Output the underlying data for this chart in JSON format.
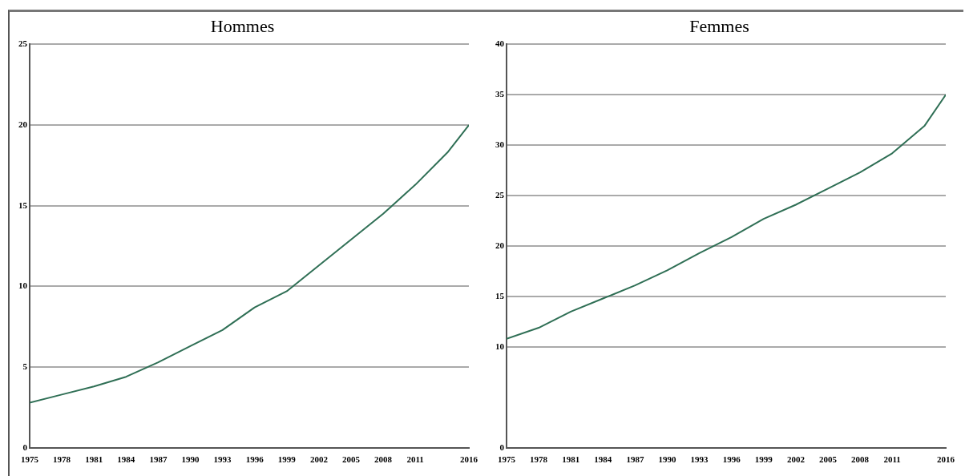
{
  "chart_data": [
    {
      "type": "line",
      "title": "Hommes",
      "x": [
        1975,
        1978,
        1981,
        1984,
        1987,
        1990,
        1993,
        1996,
        1999,
        2002,
        2005,
        2008,
        2011,
        2014,
        2016
      ],
      "values": [
        2.8,
        3.3,
        3.8,
        4.4,
        5.3,
        6.3,
        7.3,
        8.7,
        9.7,
        11.3,
        12.9,
        14.5,
        16.3,
        18.3,
        20
      ],
      "color": "#2f6f55",
      "xlim": [
        1975,
        2016
      ],
      "xticks": [
        1975,
        1978,
        1981,
        1984,
        1987,
        1990,
        1993,
        1996,
        1999,
        2002,
        2005,
        2008,
        2011,
        2016
      ],
      "ylim": [
        0,
        25
      ],
      "yticks": [
        0,
        5,
        10,
        15,
        20,
        25
      ],
      "grid": "y",
      "marker": "none"
    },
    {
      "type": "line",
      "title": "Femmes",
      "x": [
        1975,
        1978,
        1981,
        1984,
        1987,
        1990,
        1993,
        1996,
        1999,
        2002,
        2005,
        2008,
        2011,
        2014,
        2016
      ],
      "values": [
        10.8,
        11.9,
        13.5,
        14.8,
        16.1,
        17.6,
        19.3,
        20.9,
        22.7,
        24.1,
        25.7,
        27.3,
        29.2,
        31.9,
        35
      ],
      "color": "#2f6f55",
      "xlim": [
        1975,
        2016
      ],
      "xticks": [
        1975,
        1978,
        1981,
        1984,
        1987,
        1990,
        1993,
        1996,
        1999,
        2002,
        2005,
        2008,
        2011,
        2016
      ],
      "ylim": [
        0,
        40
      ],
      "yticks": [
        0,
        10,
        15,
        20,
        25,
        30,
        35,
        40
      ],
      "grid": "y",
      "marker": "none"
    }
  ]
}
